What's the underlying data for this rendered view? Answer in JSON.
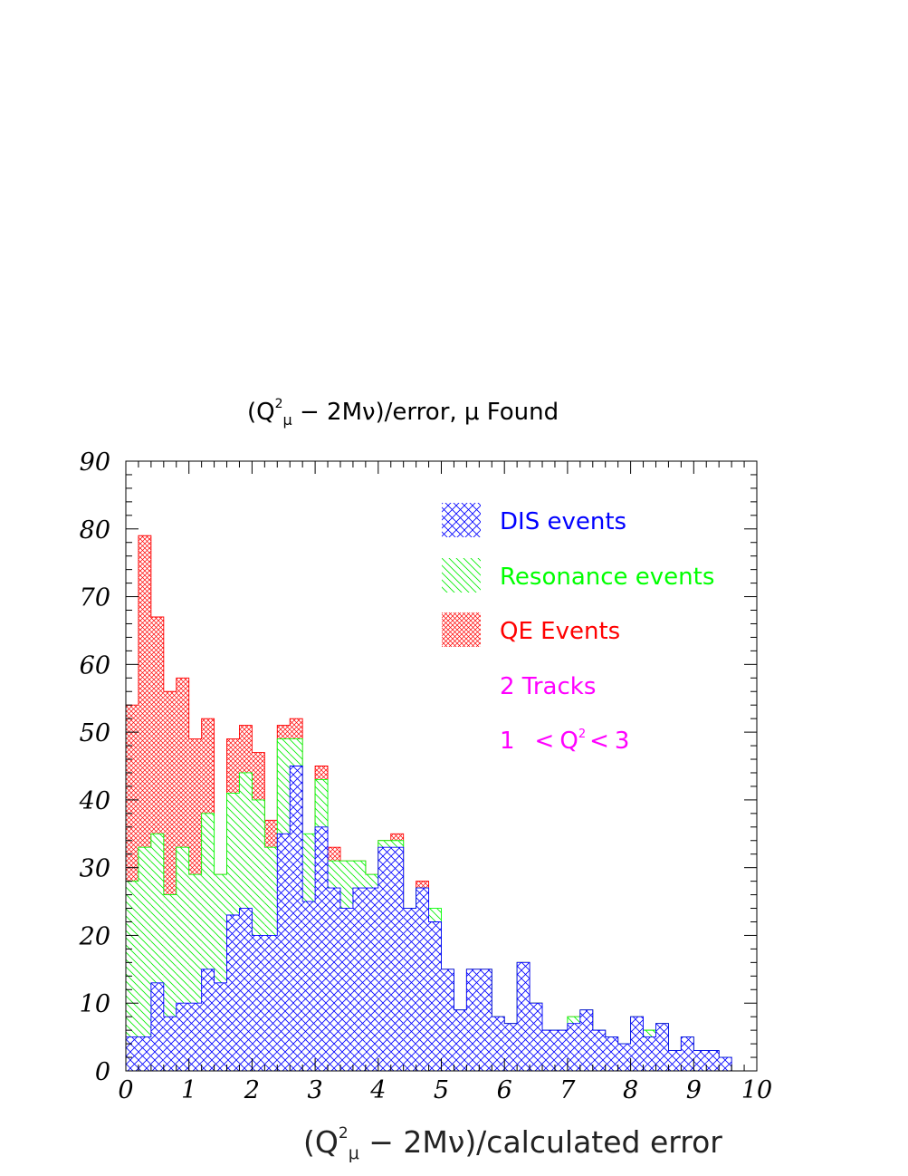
{
  "chart_data": {
    "type": "bar",
    "stacked": true,
    "title": {
      "prefix": "(Q",
      "sup": "2",
      "sub": "μ",
      "suffix": "  − 2Mν)/error, μ Found"
    },
    "xlabel": {
      "prefix": "(Q",
      "sup": "2",
      "sub": "μ",
      "suffix": "  − 2Mν)/calculated error"
    },
    "ylabel": "",
    "xlim": [
      0,
      10
    ],
    "ylim": [
      0,
      90
    ],
    "bin_width": 0.2,
    "x_ticks": [
      "0",
      "1",
      "2",
      "3",
      "4",
      "5",
      "6",
      "7",
      "8",
      "9",
      "10"
    ],
    "y_ticks": [
      "0",
      "10",
      "20",
      "30",
      "40",
      "50",
      "60",
      "70",
      "80",
      "90"
    ],
    "series": [
      {
        "name": "DIS events",
        "color": "#0000ff",
        "cumulative": [
          5,
          5,
          13,
          8,
          10,
          10,
          15,
          13,
          23,
          24,
          20,
          20,
          35,
          45,
          25,
          36,
          27,
          24,
          27,
          27,
          33,
          33,
          24,
          27,
          22,
          15,
          9,
          15,
          15,
          8,
          7,
          16,
          10,
          6,
          6,
          7,
          9,
          6,
          5,
          4,
          8,
          5,
          7,
          3,
          5,
          3,
          3,
          2,
          0,
          0
        ]
      },
      {
        "name": "Resonance events",
        "color": "#00ff00",
        "cumulative": [
          28,
          33,
          35,
          26,
          33,
          29,
          38,
          29,
          41,
          44,
          40,
          33,
          49,
          49,
          35,
          43,
          31,
          31,
          31,
          29,
          34,
          34,
          24,
          27,
          24,
          15,
          9,
          15,
          15,
          8,
          7,
          16,
          10,
          6,
          6,
          8,
          9,
          6,
          5,
          4,
          8,
          6,
          7,
          3,
          5,
          3,
          3,
          2,
          0,
          0
        ]
      },
      {
        "name": "QE Events",
        "color": "#ff0000",
        "cumulative": [
          54,
          79,
          67,
          56,
          58,
          49,
          52,
          29,
          49,
          51,
          47,
          37,
          51,
          52,
          33,
          45,
          33,
          31,
          31,
          29,
          34,
          35,
          24,
          28,
          22,
          15,
          9,
          15,
          15,
          8,
          7,
          16,
          10,
          6,
          6,
          8,
          9,
          6,
          5,
          4,
          8,
          6,
          7,
          3,
          5,
          3,
          3,
          2,
          0,
          0
        ]
      }
    ],
    "legend": {
      "placement": "top-right",
      "entries": [
        "DIS events",
        "Resonance events",
        "QE Events"
      ],
      "note_tracks": "2 Tracks",
      "note_range": {
        "lower": "1",
        "lt1": "<",
        "q": "Q",
        "sup": "2",
        "lt2": "<",
        "upper": "3"
      },
      "note_color": "#ff00ff"
    }
  }
}
